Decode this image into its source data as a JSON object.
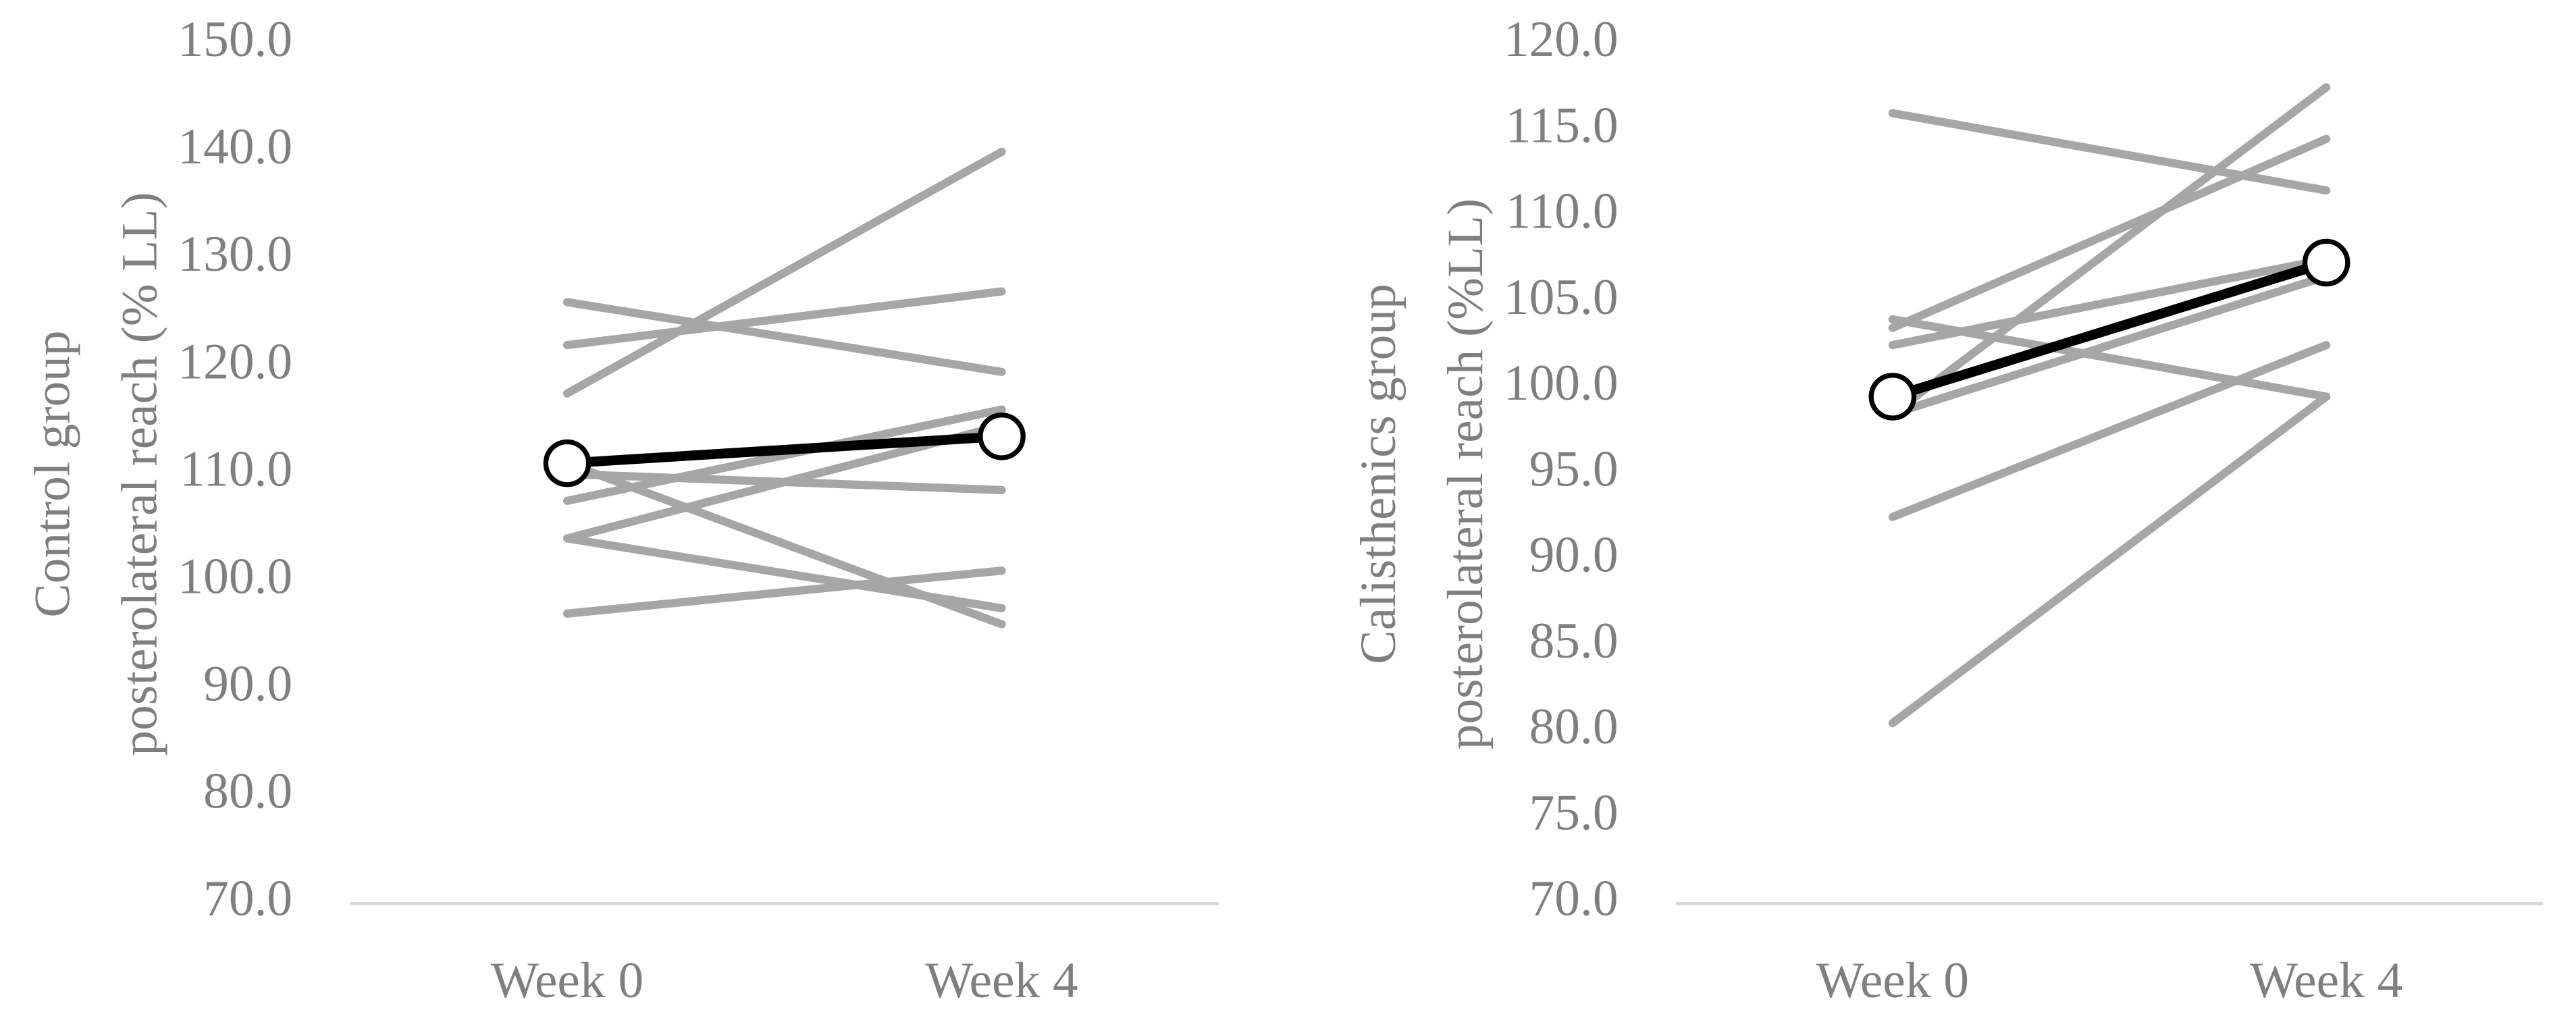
{
  "chart_data": [
    {
      "type": "line",
      "ylabel": [
        "Control group",
        "posterolateral reach (% LL)"
      ],
      "categories": [
        "Week 0",
        "Week 4"
      ],
      "ylim": [
        70,
        150
      ],
      "yticks": [
        {
          "value": 70,
          "label": "70.0"
        },
        {
          "value": 80,
          "label": "80.0"
        },
        {
          "value": 90,
          "label": "90.0"
        },
        {
          "value": 100,
          "label": "100.0"
        },
        {
          "value": 110,
          "label": "110.0"
        },
        {
          "value": 120,
          "label": "120.0"
        },
        {
          "value": 130,
          "label": "130.0"
        },
        {
          "value": 140,
          "label": "140.0"
        },
        {
          "value": 150,
          "label": "150.0"
        }
      ],
      "series": [
        {
          "color": "#a6a6a6",
          "values": [
            97,
            101
          ]
        },
        {
          "color": "#a6a6a6",
          "values": [
            104,
            97.5
          ]
        },
        {
          "color": "#a6a6a6",
          "values": [
            104,
            114.5
          ]
        },
        {
          "color": "#a6a6a6",
          "values": [
            107.5,
            116
          ]
        },
        {
          "color": "#a6a6a6",
          "values": [
            110,
            108.5
          ]
        },
        {
          "color": "#a6a6a6",
          "values": [
            111,
            96
          ]
        },
        {
          "color": "#a6a6a6",
          "values": [
            117.5,
            140
          ]
        },
        {
          "color": "#a6a6a6",
          "values": [
            122,
            127
          ]
        },
        {
          "color": "#a6a6a6",
          "values": [
            126,
            119.5
          ]
        },
        {
          "color": "#000000",
          "marker": "circle",
          "values": [
            111,
            113.5
          ]
        }
      ]
    },
    {
      "type": "line",
      "ylabel": [
        "Calisthenics group",
        "posterolateral reach (%LL)"
      ],
      "categories": [
        "Week 0",
        "Week 4"
      ],
      "ylim": [
        70,
        120
      ],
      "yticks": [
        {
          "value": 70,
          "label": "70.0"
        },
        {
          "value": 75,
          "label": "75.0"
        },
        {
          "value": 80,
          "label": "80.0"
        },
        {
          "value": 85,
          "label": "85.0"
        },
        {
          "value": 90,
          "label": "90.0"
        },
        {
          "value": 95,
          "label": "95.0"
        },
        {
          "value": 100,
          "label": "100.0"
        },
        {
          "value": 105,
          "label": "105.0"
        },
        {
          "value": 110,
          "label": "110.0"
        },
        {
          "value": 115,
          "label": "115.0"
        },
        {
          "value": 120,
          "label": "120.0"
        }
      ],
      "series": [
        {
          "color": "#a6a6a6",
          "values": [
            116,
            111.5
          ]
        },
        {
          "color": "#a6a6a6",
          "values": [
            104,
            99.5
          ]
        },
        {
          "color": "#a6a6a6",
          "values": [
            103.5,
            114.5
          ]
        },
        {
          "color": "#a6a6a6",
          "values": [
            102.5,
            107.5
          ]
        },
        {
          "color": "#a6a6a6",
          "values": [
            98.5,
            117.5
          ]
        },
        {
          "color": "#a6a6a6",
          "values": [
            98.5,
            106.5
          ]
        },
        {
          "color": "#a6a6a6",
          "values": [
            92.5,
            102.5
          ]
        },
        {
          "color": "#a6a6a6",
          "values": [
            80.5,
            99.5
          ]
        },
        {
          "color": "#000000",
          "marker": "circle",
          "values": [
            99.5,
            107.3
          ]
        }
      ]
    }
  ]
}
